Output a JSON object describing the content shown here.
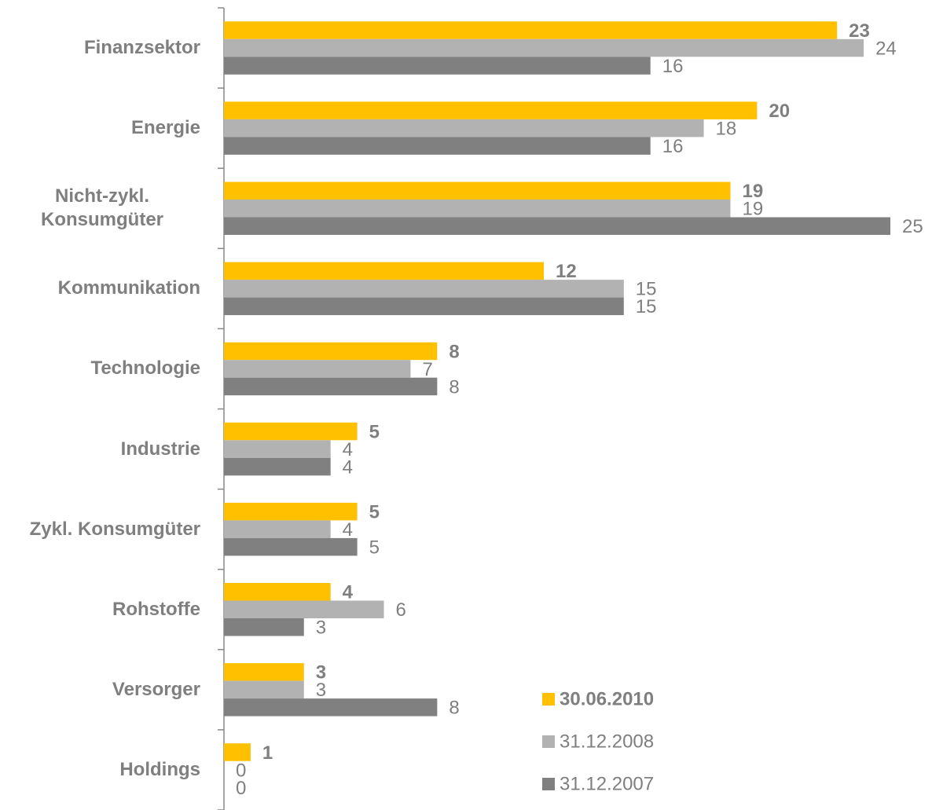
{
  "chart_data": {
    "type": "hbar",
    "categories": [
      "Finanzsektor",
      "Energie",
      "Nicht-zykl. Konsumgüter",
      "Kommunikation",
      "Technologie",
      "Industrie",
      "Zykl. Konsumgüter",
      "Rohstoffe",
      "Versorger",
      "Holdings"
    ],
    "series": [
      {
        "name": "30.06.2010",
        "color": "#ffc000",
        "values": [
          23,
          20,
          19,
          12,
          8,
          5,
          5,
          4,
          3,
          1
        ]
      },
      {
        "name": "31.12.2008",
        "color": "#b2b2b2",
        "values": [
          24,
          18,
          19,
          15,
          7,
          4,
          4,
          6,
          3,
          0
        ]
      },
      {
        "name": "31.12.2007",
        "color": "#808080",
        "values": [
          16,
          16,
          25,
          15,
          8,
          4,
          5,
          3,
          8,
          0
        ]
      }
    ],
    "xlim": [
      0,
      25
    ],
    "legend": "lower right"
  }
}
